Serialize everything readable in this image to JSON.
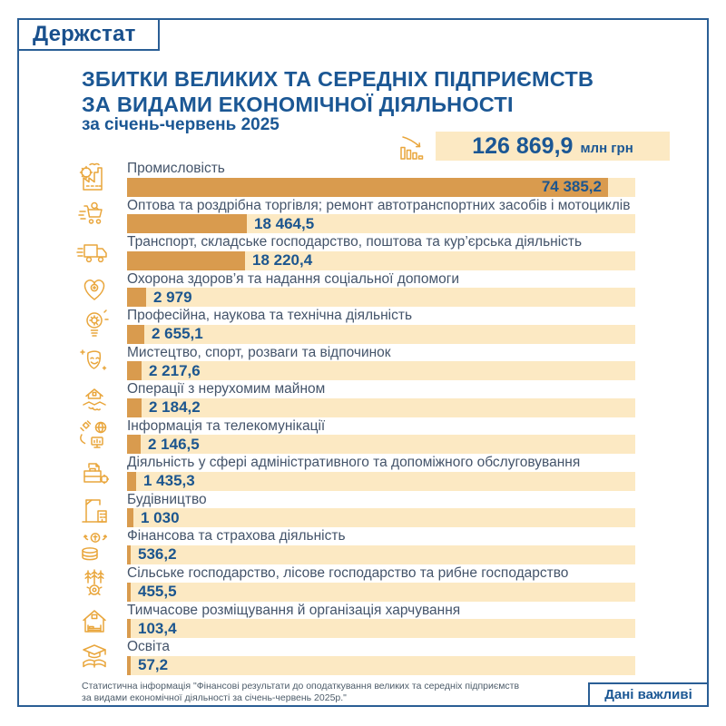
{
  "logo": "Держстат",
  "header": {
    "title_line1": "ЗБИТКИ ВЕЛИКИХ ТА СЕРЕДНІХ ПІДПРИЄМСТВ",
    "title_line2": "ЗА ВИДАМИ ЕКОНОМІЧНОЇ ДІЯЛЬНОСТІ",
    "subtitle": "за січень-червень 2025",
    "total_value": "126 869,9",
    "total_unit": "млн грн"
  },
  "chart_data": {
    "type": "bar",
    "orientation": "horizontal",
    "title": "Збитки великих та середніх підприємств за видами економічної діяльності за січень-червень 2025",
    "unit": "млн грн",
    "total": 126869.9,
    "xlim": [
      0,
      74385.2
    ],
    "grid": false,
    "bar_color": "#d99b4e",
    "track_color": "#fce9c3",
    "categories": [
      "Промисловість",
      "Оптова та роздрібна торгівля; ремонт автотранспортних засобів і мотоциклів",
      "Транспорт, складське господарство, поштова та кур’єрська діяльність",
      "Охорона здоров’я та надання соціальної допомоги",
      "Професійна, наукова та технічна діяльність",
      "Мистецтво, спорт, розваги та відпочинок",
      "Операції з нерухомим майном",
      "Інформація та телекомунікації",
      "Діяльність у сфері адміністративного та допоміжного обслуговування",
      "Будівництво",
      "Фінансова та страхова діяльність",
      "Сільське господарство, лісове господарство та рибне господарство",
      "Тимчасове розміщування й організація харчування",
      "Освіта"
    ],
    "values": [
      74385.2,
      18464.5,
      18220.4,
      2979,
      2655.1,
      2217.6,
      2184.2,
      2146.5,
      1435.3,
      1030,
      536.2,
      455.5,
      103.4,
      57.2
    ],
    "value_labels": [
      "74 385,2",
      "18 464,5",
      "18 220,4",
      "2 979",
      "2 655,1",
      "2 217,6",
      "2 184,2",
      "2 146,5",
      "1 435,3",
      "1 030",
      "536,2",
      "455,5",
      "103,4",
      "57,2"
    ],
    "icons": [
      "industry-icon",
      "trade-icon",
      "transport-icon",
      "health-icon",
      "science-icon",
      "arts-icon",
      "real-estate-icon",
      "it-telecom-icon",
      "admin-services-icon",
      "construction-icon",
      "finance-icon",
      "agriculture-icon",
      "accommodation-icon",
      "education-icon"
    ]
  },
  "footer": {
    "source_line1": "Статистична інформація \"Фінансові результати до оподаткування великих та середніх підприємств",
    "source_line2": "за видами економічної діяльності за січень-червень 2025р.\"",
    "badge": "Дані важливі"
  },
  "colors": {
    "accent_blue": "#1b5794",
    "border_blue": "#2a5e95",
    "bar_fill": "#d99b4e",
    "bar_track": "#fce9c3",
    "icon_orange": "#e9a63c",
    "label_gray": "#44546a"
  }
}
